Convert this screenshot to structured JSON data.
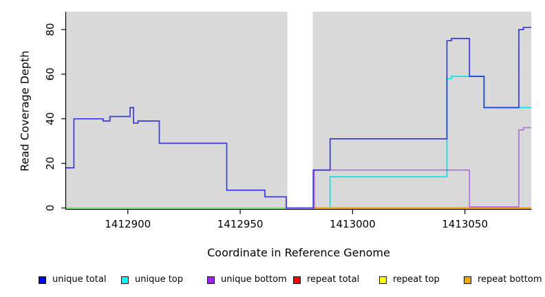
{
  "figure": {
    "xlabel": "Coordinate in Reference Genome",
    "ylabel": "Read Coverage Depth"
  },
  "chart_data": {
    "type": "line",
    "subtype": "step",
    "title": "",
    "xlabel": "Coordinate in Reference Genome",
    "ylabel": "Read Coverage Depth",
    "xlim": [
      1412872.5,
      1413079.5
    ],
    "ylim": [
      0,
      88
    ],
    "xticks": [
      1412900,
      1412950,
      1413000,
      1413050
    ],
    "yticks": [
      0,
      20,
      40,
      60,
      80
    ],
    "grid": false,
    "plot_background": "#d9d9d9",
    "masked_region": {
      "from": 1412971,
      "to": 1412982.3
    },
    "legend_position": "bottom",
    "legend": [
      {
        "label": "unique total",
        "color": "#0000ff"
      },
      {
        "label": "unique top",
        "color": "#00ffff"
      },
      {
        "label": "unique bottom",
        "color": "#a020f0"
      },
      {
        "label": "repeat total",
        "color": "#ff0000"
      },
      {
        "label": "repeat top",
        "color": "#ffff00"
      },
      {
        "label": "repeat bottom",
        "color": "#ffa500"
      }
    ],
    "series": [
      {
        "name": "repeat total",
        "color": "#ff0000",
        "opacity": 1,
        "segments": [
          {
            "points": [
              [
                1412872.5,
                0
              ]
            ],
            "end": 1412970.5
          },
          {
            "points": [
              [
                1412982.5,
                0
              ]
            ],
            "end": 1413079.5
          }
        ]
      },
      {
        "name": "unique top",
        "color": "#00e8e8",
        "opacity": 1,
        "segments": [
          {
            "points": [
              [
                1412872.5,
                0
              ]
            ],
            "end": 1412970.5
          },
          {
            "points": [
              [
                1412982.5,
                0
              ],
              [
                1412990,
                14
              ],
              [
                1413042,
                58
              ],
              [
                1413044,
                59
              ],
              [
                1413058.5,
                45
              ]
            ],
            "end": 1413079.5
          }
        ]
      },
      {
        "name": "repeat top",
        "color": "#ffff00",
        "opacity": 0.5,
        "segments": [
          {
            "points": [
              [
                1412872.5,
                0
              ]
            ],
            "end": 1412970.5
          },
          {
            "points": [
              [
                1412982.5,
                0
              ]
            ],
            "end": 1413079.5
          }
        ]
      },
      {
        "name": "repeat bottom",
        "color": "#ffa200",
        "opacity": 1,
        "segments": [
          {
            "points": [
              [
                1412982.5,
                0
              ]
            ],
            "end": 1413079.5
          }
        ]
      },
      {
        "name": "unique bottom",
        "color": "#9b30e0",
        "opacity": 0.62,
        "segments": [
          {
            "points": [
              [
                1412982.5,
                0
              ],
              [
                1412983,
                17
              ],
              [
                1413052,
                0.5
              ],
              [
                1413074,
                35
              ],
              [
                1413076,
                36
              ]
            ],
            "end": 1413079.5
          }
        ]
      },
      {
        "name": "unique total",
        "color": "#2020e6",
        "opacity": 0.88,
        "segments": [
          {
            "points": [
              [
                1412872.5,
                18
              ],
              [
                1412876,
                40
              ],
              [
                1412889,
                39
              ],
              [
                1412892,
                41
              ],
              [
                1412901,
                45
              ],
              [
                1412902.5,
                38
              ],
              [
                1412904.5,
                39
              ],
              [
                1412914,
                29
              ],
              [
                1412944,
                8
              ],
              [
                1412961,
                5
              ],
              [
                1412970.5,
                0
              ],
              [
                1412982.5,
                17
              ],
              [
                1412990,
                31
              ],
              [
                1413042,
                75
              ],
              [
                1413044,
                76
              ],
              [
                1413052,
                59
              ],
              [
                1413058.5,
                45
              ],
              [
                1413074,
                80
              ],
              [
                1413076,
                81
              ]
            ],
            "end": 1413079.5
          }
        ]
      }
    ]
  }
}
